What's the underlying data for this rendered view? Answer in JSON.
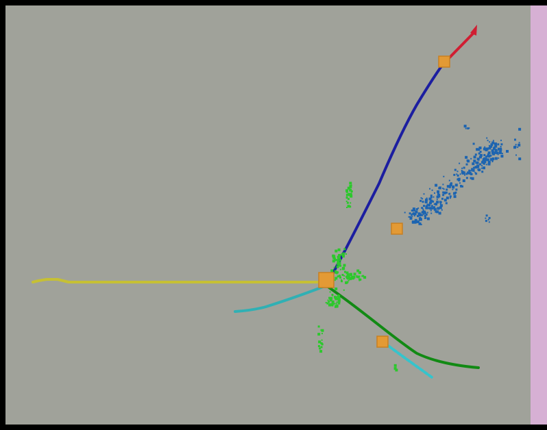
{
  "event_display": {
    "colors": {
      "background": "#a0a29a",
      "side_band": "#d6b0d4",
      "marker": "#e39a35",
      "marker_edge": "#c77f22"
    },
    "tracks": [
      {
        "name": "track-blue-muon",
        "color": "#1c1ea0",
        "style": "solid"
      },
      {
        "name": "track-red-segment",
        "color": "#d01e32",
        "style": "solid"
      },
      {
        "name": "track-yellow",
        "color": "#c6c034",
        "style": "solid"
      },
      {
        "name": "track-cyan-left",
        "color": "#30b0b4",
        "style": "solid"
      },
      {
        "name": "track-green-curve",
        "color": "#128a14",
        "style": "solid"
      },
      {
        "name": "track-cyan-lower",
        "color": "#35c4cc",
        "style": "dashed"
      }
    ],
    "hit_clusters": [
      {
        "name": "hits-blue-shower",
        "color": "#1d64b0"
      },
      {
        "name": "hits-green-vertex",
        "color": "#2cc82c"
      }
    ],
    "vertices": [
      {
        "name": "primary-vertex-marker"
      },
      {
        "name": "upper-vertex-marker"
      },
      {
        "name": "middle-vertex-marker"
      },
      {
        "name": "lower-vertex-marker"
      }
    ]
  }
}
